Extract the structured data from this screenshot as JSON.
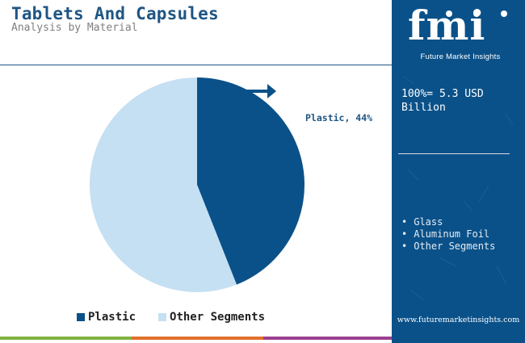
{
  "header": {
    "title": "Tablets And Capsules",
    "subtitle": "Analysis by Material"
  },
  "sidebar": {
    "logo_text": "fmi",
    "logo_tagline": "Future Market Insights",
    "total_label": "100%= 5.3 USD Billion",
    "segments": [
      "Glass",
      "Aluminum Foil",
      "Other Segments"
    ],
    "website": "www.futuremarketinsights.com"
  },
  "annotation": {
    "text": "Plastic, 44%"
  },
  "legend": {
    "items": [
      "Plastic",
      "Other Segments"
    ]
  },
  "colors": {
    "plastic": "#0a5189",
    "other": "#c5e0f3",
    "brand": "#0a5189",
    "bottom_bar": [
      "#7fb241",
      "#e06f2c",
      "#9b3f8f"
    ]
  },
  "chart_data": {
    "type": "pie",
    "title": "Tablets And Capsules",
    "subtitle": "Analysis by Material",
    "slices": [
      {
        "label": "Plastic",
        "value": 44,
        "color": "#0a5189"
      },
      {
        "label": "Other Segments",
        "value": 56,
        "color": "#c5e0f3"
      }
    ],
    "total": "100%= 5.3 USD Billion",
    "legend_position": "bottom",
    "annotations": [
      "Plastic, 44%"
    ]
  }
}
